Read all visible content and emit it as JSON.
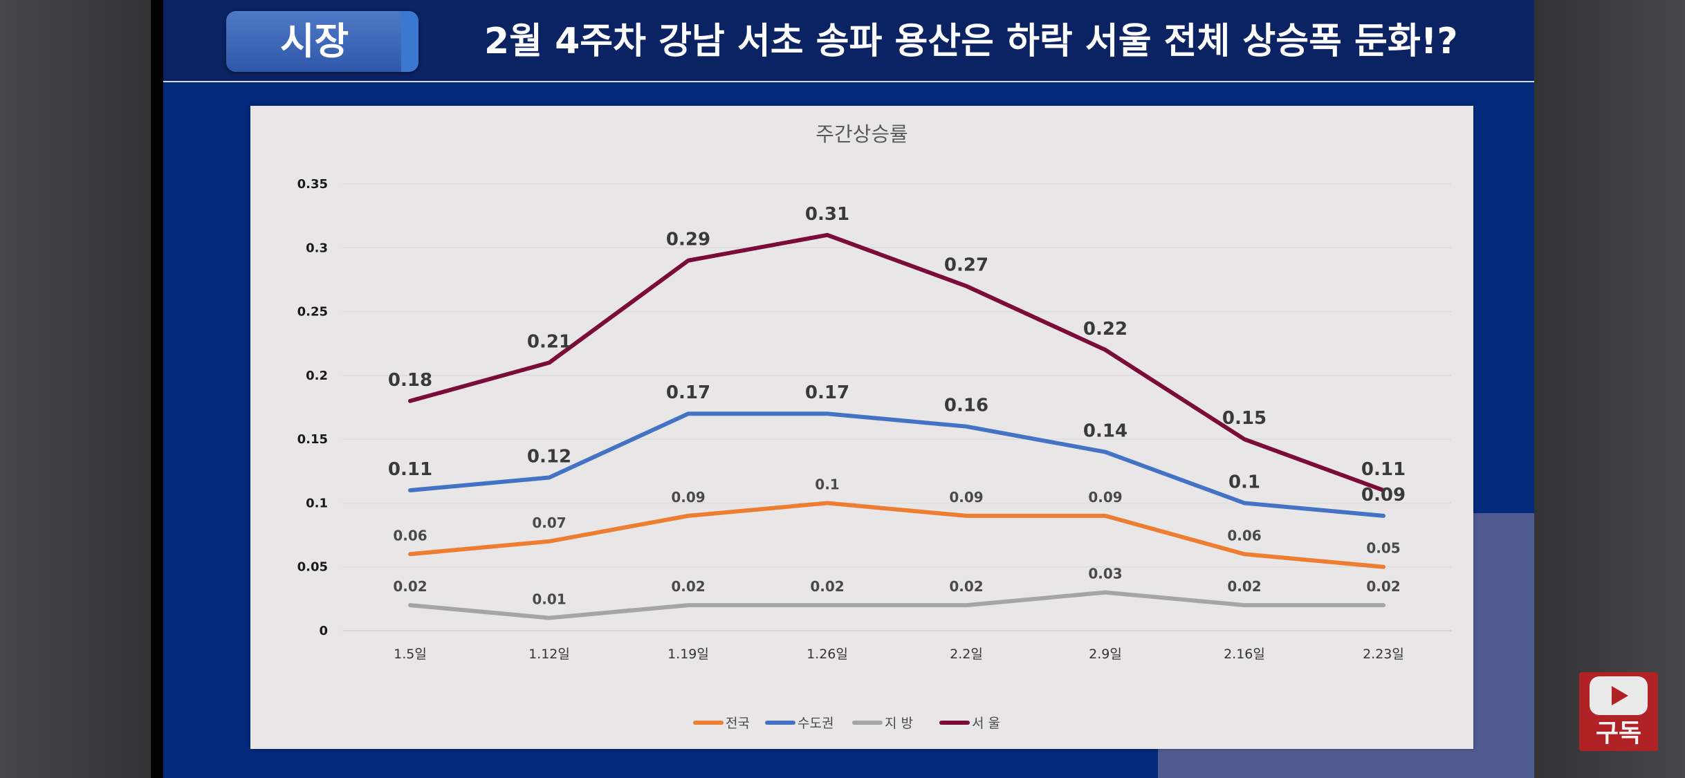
{
  "header": {
    "badge_label": "시장",
    "headline": "2월 4주차  강남 서초 송파 용산은 하락 서울 전체 상승폭 둔화!?"
  },
  "subscribe": {
    "label": "구독"
  },
  "colors": {
    "slide_bg": "#03297a",
    "header_bg": "#0b2362",
    "panel_bg": "#e8e6e7",
    "subscribe_red": "#b12226"
  },
  "chart_data": {
    "type": "line",
    "title": "주간상승률",
    "xlabel": "",
    "ylabel": "",
    "ylim": [
      0,
      0.35
    ],
    "yticks": [
      0,
      0.05,
      0.1,
      0.15,
      0.2,
      0.25,
      0.3,
      0.35
    ],
    "ytick_labels": [
      "0",
      "0.05",
      "0.1",
      "0.15",
      "0.2",
      "0.25",
      "0.3",
      "0.35"
    ],
    "grid": true,
    "legend_position": "bottom-center",
    "categories": [
      "1.5일",
      "1.12일",
      "1.19일",
      "1.26일",
      "2.2일",
      "2.9일",
      "2.16일",
      "2.23일"
    ],
    "series": [
      {
        "name": "전국",
        "color": "#ed7d31",
        "values": [
          0.06,
          0.07,
          0.09,
          0.1,
          0.09,
          0.09,
          0.06,
          0.05
        ],
        "labels": [
          "0.06",
          "0.07",
          "0.09",
          "0.1",
          "0.09",
          "0.09",
          "0.06",
          "0.05"
        ],
        "label_size": "small"
      },
      {
        "name": "수도권",
        "color": "#4472c4",
        "values": [
          0.11,
          0.12,
          0.17,
          0.17,
          0.16,
          0.14,
          0.1,
          0.09
        ],
        "labels": [
          "0.11",
          "0.12",
          "0.17",
          "0.17",
          "0.16",
          "0.14",
          "0.1",
          "0.09"
        ],
        "label_size": "large"
      },
      {
        "name": "지 방",
        "color": "#a5a5a5",
        "values": [
          0.02,
          0.01,
          0.02,
          0.02,
          0.02,
          0.03,
          0.02,
          0.02
        ],
        "labels": [
          "0.02",
          "0.01",
          "0.02",
          "0.02",
          "0.02",
          "0.03",
          "0.02",
          "0.02"
        ],
        "label_size": "small"
      },
      {
        "name": "서 울",
        "color": "#7b0c3a",
        "values": [
          0.18,
          0.21,
          0.29,
          0.31,
          0.27,
          0.22,
          0.15,
          0.11
        ],
        "labels": [
          "0.18",
          "0.21",
          "0.29",
          "0.31",
          "0.27",
          "0.22",
          "0.15",
          "0.11"
        ],
        "label_size": "large"
      }
    ]
  }
}
